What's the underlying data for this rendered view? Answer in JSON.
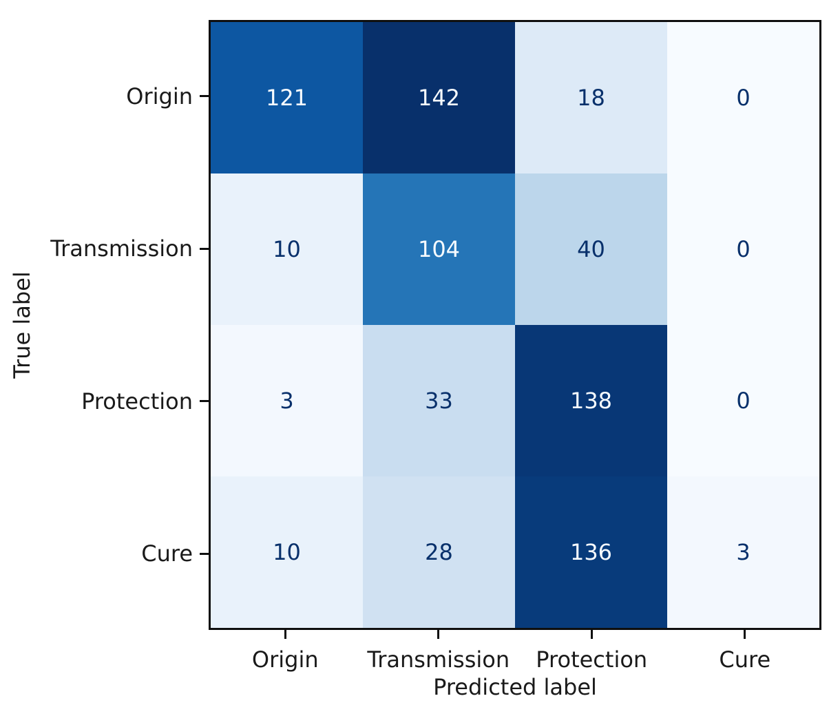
{
  "figure": {
    "background": "#ffffff",
    "axis_color": "#0f0f0f",
    "text_color": "#1a1a1a"
  },
  "chart_data": {
    "type": "heatmap",
    "subtype": "confusion-matrix",
    "title": "",
    "xlabel": "Predicted label",
    "ylabel": "True label",
    "x_categories": [
      "Origin",
      "Transmission",
      "Protection",
      "Cure"
    ],
    "y_categories": [
      "Origin",
      "Transmission",
      "Protection",
      "Cure"
    ],
    "matrix": [
      [
        121,
        142,
        18,
        0
      ],
      [
        10,
        104,
        40,
        0
      ],
      [
        3,
        33,
        138,
        0
      ],
      [
        10,
        28,
        136,
        3
      ]
    ],
    "colormap": "Blues",
    "vmin": 0,
    "vmax": 142,
    "white_text_threshold": 71,
    "cell_colors": [
      [
        "#0d57a2",
        "#08306b",
        "#ddeaf7",
        "#f7fbff"
      ],
      [
        "#e9f2fb",
        "#2575b7",
        "#bcd6eb",
        "#f7fbff"
      ],
      [
        "#f3f8fe",
        "#c9ddf0",
        "#083776",
        "#f7fbff"
      ],
      [
        "#e9f2fb",
        "#d0e1f2",
        "#083b7b",
        "#f3f8fe"
      ]
    ],
    "colors": {
      "dark_text": "#08306b",
      "light_text": "#f7fbff"
    },
    "grid": false,
    "legend": "none"
  }
}
